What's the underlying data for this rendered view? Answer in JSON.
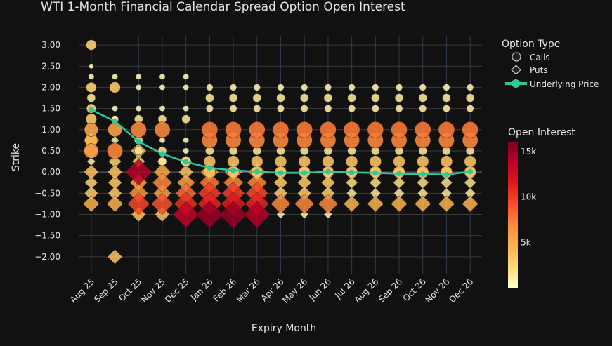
{
  "chart_data": {
    "type": "scatter",
    "title": "WTI 1-Month Financial Calendar Spread Option Open Interest",
    "xlabel": "Expiry Month",
    "ylabel": "Strike",
    "categories": [
      "Aug 25",
      "Sep 25",
      "Oct 25",
      "Nov 25",
      "Dec 25",
      "Jan 26",
      "Feb 26",
      "Mar 26",
      "Apr 26",
      "May 26",
      "Jun 26",
      "Jul 26",
      "Aug 26",
      "Sep 26",
      "Oct 26",
      "Nov 26",
      "Dec 26"
    ],
    "ylim": [
      -2.4,
      3.2
    ],
    "yticks": [
      3.0,
      2.5,
      2.0,
      1.5,
      1.0,
      0.5,
      0.0,
      -0.5,
      -1.0,
      -1.5,
      -2.0
    ],
    "ytick_labels": [
      "3.00",
      "2.50",
      "2.00",
      "1.50",
      "1.00",
      "0.50",
      "0.00",
      "−0.50",
      "−1.00",
      "−1.50",
      "−2.00"
    ],
    "legend": {
      "title": "Option Type",
      "entries": [
        "Calls",
        "Puts",
        "Underlying Price"
      ],
      "placement": "top-right"
    },
    "colorbar": {
      "title": "Open Interest",
      "range": [
        0,
        16000
      ],
      "ticks": [
        5000,
        10000,
        15000
      ],
      "tick_labels": [
        "5k",
        "10k",
        "15k"
      ],
      "colors": [
        "#ffffcc",
        "#fed976",
        "#feb24c",
        "#fd8d3c",
        "#fc4e2a",
        "#e31a1c",
        "#bd0026",
        "#800026"
      ]
    },
    "underlying_price": [
      1.47,
      1.2,
      0.72,
      0.43,
      0.24,
      0.1,
      0.04,
      0.01,
      -0.02,
      -0.02,
      0.01,
      -0.01,
      -0.02,
      -0.04,
      -0.05,
      -0.06,
      0.01
    ],
    "calls": [
      {
        "x": 0,
        "y": 3.0,
        "oi": 2500
      },
      {
        "x": 0,
        "y": 2.5,
        "oi": 300
      },
      {
        "x": 0,
        "y": 2.25,
        "oi": 500
      },
      {
        "x": 0,
        "y": 2.0,
        "oi": 2500
      },
      {
        "x": 0,
        "y": 1.75,
        "oi": 1500
      },
      {
        "x": 0,
        "y": 1.5,
        "oi": 2000
      },
      {
        "x": 0,
        "y": 1.25,
        "oi": 3000
      },
      {
        "x": 0,
        "y": 1.0,
        "oi": 5000
      },
      {
        "x": 0,
        "y": 0.75,
        "oi": 4500
      },
      {
        "x": 0,
        "y": 0.5,
        "oi": 6000
      },
      {
        "x": 1,
        "y": 2.25,
        "oi": 500
      },
      {
        "x": 1,
        "y": 2.0,
        "oi": 3000
      },
      {
        "x": 1,
        "y": 1.5,
        "oi": 500
      },
      {
        "x": 1,
        "y": 1.25,
        "oi": 1000
      },
      {
        "x": 1,
        "y": 1.0,
        "oi": 5500
      },
      {
        "x": 1,
        "y": 0.5,
        "oi": 7000
      },
      {
        "x": 2,
        "y": 2.25,
        "oi": 500
      },
      {
        "x": 2,
        "y": 2.0,
        "oi": 500
      },
      {
        "x": 2,
        "y": 1.5,
        "oi": 500
      },
      {
        "x": 2,
        "y": 1.25,
        "oi": 1500
      },
      {
        "x": 2,
        "y": 1.0,
        "oi": 7000
      },
      {
        "x": 2,
        "y": 0.75,
        "oi": 1500
      },
      {
        "x": 2,
        "y": 0.5,
        "oi": 1500
      },
      {
        "x": 3,
        "y": 2.25,
        "oi": 500
      },
      {
        "x": 3,
        "y": 2.0,
        "oi": 500
      },
      {
        "x": 3,
        "y": 1.5,
        "oi": 500
      },
      {
        "x": 3,
        "y": 1.25,
        "oi": 1500
      },
      {
        "x": 3,
        "y": 1.0,
        "oi": 7000
      },
      {
        "x": 3,
        "y": 0.75,
        "oi": 500
      },
      {
        "x": 3,
        "y": 0.5,
        "oi": 1500
      },
      {
        "x": 3,
        "y": 0.25,
        "oi": 1500
      },
      {
        "x": 4,
        "y": 2.25,
        "oi": 500
      },
      {
        "x": 4,
        "y": 2.0,
        "oi": 500
      },
      {
        "x": 4,
        "y": 1.5,
        "oi": 500
      },
      {
        "x": 4,
        "y": 1.25,
        "oi": 1500
      },
      {
        "x": 4,
        "y": 0.75,
        "oi": 500
      },
      {
        "x": 4,
        "y": 0.5,
        "oi": 500
      },
      {
        "x": 4,
        "y": 0.25,
        "oi": 2500
      }
    ],
    "calls_common": [
      {
        "y": 2.0,
        "oi": 800
      },
      {
        "y": 1.75,
        "oi": 1500
      },
      {
        "y": 1.5,
        "oi": 1000
      },
      {
        "y": 1.0,
        "oi": 7500
      },
      {
        "y": 0.75,
        "oi": 7000
      },
      {
        "y": 0.5,
        "oi": 1500
      },
      {
        "y": 0.25,
        "oi": 3500
      },
      {
        "y": 0.0,
        "oi": 3500
      }
    ],
    "puts": [
      {
        "x": 0,
        "y": 0.75,
        "oi": 4500
      },
      {
        "x": 0,
        "y": 0.5,
        "oi": 4000
      },
      {
        "x": 0,
        "y": 0.25,
        "oi": 800
      },
      {
        "x": 0,
        "y": 0.0,
        "oi": 3500
      },
      {
        "x": 0,
        "y": -0.25,
        "oi": 2500
      },
      {
        "x": 0,
        "y": -0.5,
        "oi": 3000
      },
      {
        "x": 0,
        "y": -0.75,
        "oi": 4500
      },
      {
        "x": 1,
        "y": 1.25,
        "oi": 600
      },
      {
        "x": 1,
        "y": 0.75,
        "oi": 800
      },
      {
        "x": 1,
        "y": 0.25,
        "oi": 2500
      },
      {
        "x": 1,
        "y": 0.0,
        "oi": 3500
      },
      {
        "x": 1,
        "y": -0.25,
        "oi": 3000
      },
      {
        "x": 1,
        "y": -0.5,
        "oi": 3000
      },
      {
        "x": 1,
        "y": -0.75,
        "oi": 4500
      },
      {
        "x": 1,
        "y": -2.0,
        "oi": 3500
      },
      {
        "x": 2,
        "y": 0.5,
        "oi": 4000
      },
      {
        "x": 2,
        "y": 0.25,
        "oi": 2500
      },
      {
        "x": 2,
        "y": 0.0,
        "oi": 14000
      },
      {
        "x": 2,
        "y": -0.25,
        "oi": 5000
      },
      {
        "x": 2,
        "y": -0.5,
        "oi": 6500
      },
      {
        "x": 2,
        "y": -0.75,
        "oi": 9500
      },
      {
        "x": 2,
        "y": -1.0,
        "oi": 3500
      },
      {
        "x": 3,
        "y": 0.25,
        "oi": 1500
      },
      {
        "x": 3,
        "y": 0.0,
        "oi": 5000
      },
      {
        "x": 3,
        "y": -0.25,
        "oi": 7000
      },
      {
        "x": 3,
        "y": -0.5,
        "oi": 5500
      },
      {
        "x": 3,
        "y": -0.75,
        "oi": 9000
      },
      {
        "x": 3,
        "y": -1.0,
        "oi": 3500
      },
      {
        "x": 4,
        "y": 0.25,
        "oi": 2000
      },
      {
        "x": 4,
        "y": 0.0,
        "oi": 3500
      },
      {
        "x": 4,
        "y": -0.25,
        "oi": 5500
      },
      {
        "x": 4,
        "y": -0.5,
        "oi": 8000
      },
      {
        "x": 4,
        "y": -0.75,
        "oi": 10500
      },
      {
        "x": 4,
        "y": -1.0,
        "oi": 13500
      },
      {
        "x": 5,
        "y": 0.0,
        "oi": 6000
      },
      {
        "x": 5,
        "y": -0.25,
        "oi": 7500
      },
      {
        "x": 5,
        "y": -0.5,
        "oi": 10000
      },
      {
        "x": 5,
        "y": -0.75,
        "oi": 11000
      },
      {
        "x": 5,
        "y": -1.0,
        "oi": 15000
      },
      {
        "x": 6,
        "y": 0.0,
        "oi": 5500
      },
      {
        "x": 6,
        "y": -0.25,
        "oi": 7000
      },
      {
        "x": 6,
        "y": -0.5,
        "oi": 10000
      },
      {
        "x": 6,
        "y": -0.75,
        "oi": 11500
      },
      {
        "x": 6,
        "y": -1.0,
        "oi": 15000
      },
      {
        "x": 7,
        "y": 0.0,
        "oi": 5500
      },
      {
        "x": 7,
        "y": -0.25,
        "oi": 7000
      },
      {
        "x": 7,
        "y": -0.5,
        "oi": 9500
      },
      {
        "x": 7,
        "y": -0.75,
        "oi": 11000
      },
      {
        "x": 7,
        "y": -1.0,
        "oi": 14000
      },
      {
        "x": 8,
        "y": 0.0,
        "oi": 2500
      },
      {
        "x": 8,
        "y": -0.25,
        "oi": 3000
      },
      {
        "x": 8,
        "y": -0.5,
        "oi": 3000
      },
      {
        "x": 8,
        "y": -0.75,
        "oi": 7000
      },
      {
        "x": 8,
        "y": -1.0,
        "oi": 800
      },
      {
        "x": 9,
        "y": 0.0,
        "oi": 2500
      },
      {
        "x": 9,
        "y": -0.25,
        "oi": 3000
      },
      {
        "x": 9,
        "y": -0.5,
        "oi": 3000
      },
      {
        "x": 9,
        "y": -0.75,
        "oi": 7000
      },
      {
        "x": 9,
        "y": -1.0,
        "oi": 800
      },
      {
        "x": 10,
        "y": 0.0,
        "oi": 2500
      },
      {
        "x": 10,
        "y": -0.25,
        "oi": 3000
      },
      {
        "x": 10,
        "y": -0.5,
        "oi": 3000
      },
      {
        "x": 10,
        "y": -0.75,
        "oi": 7000
      },
      {
        "x": 10,
        "y": -1.0,
        "oi": 800
      }
    ],
    "puts_common": [
      {
        "y": 0.0,
        "oi": 2500
      },
      {
        "y": -0.25,
        "oi": 2000
      },
      {
        "y": -0.5,
        "oi": 1500
      },
      {
        "y": -0.75,
        "oi": 4500
      }
    ]
  }
}
